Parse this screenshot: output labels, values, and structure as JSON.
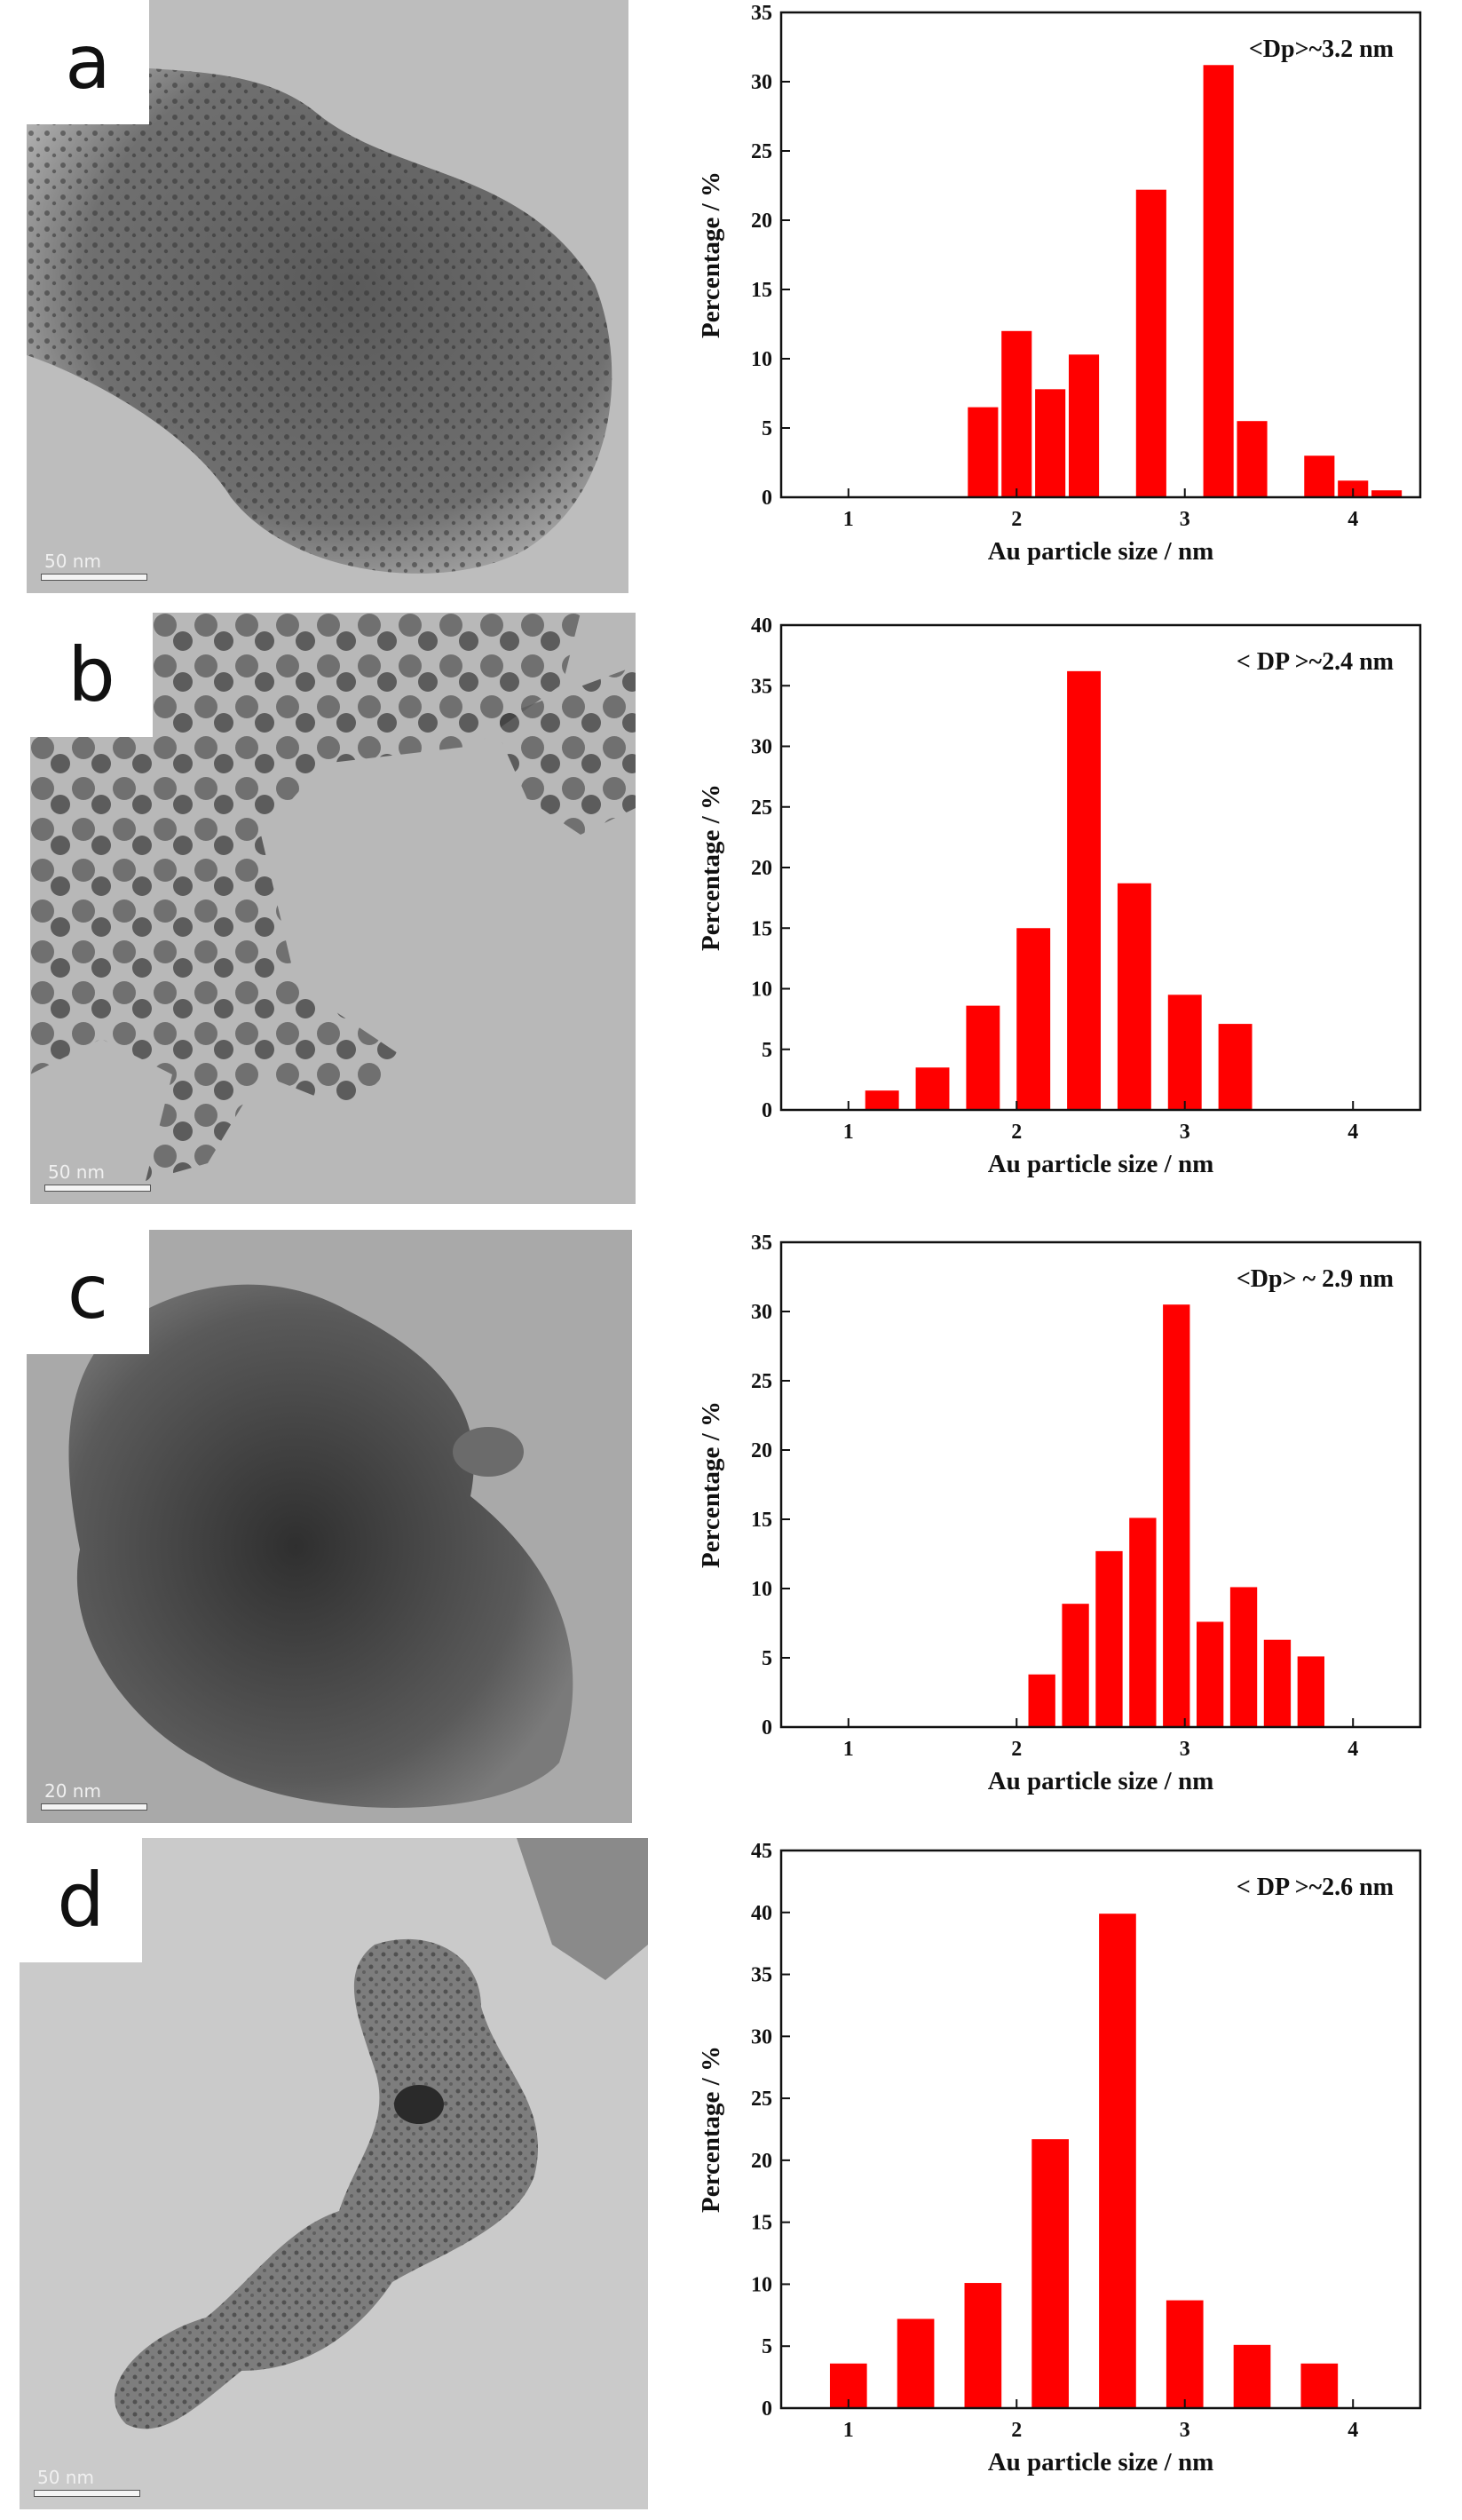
{
  "panels": [
    {
      "letter": "a",
      "scale_label": "50 nm",
      "chart_data": {
        "type": "bar",
        "annotation": "<Dp>~3.2 nm",
        "xlabel": "Au particle size / nm",
        "ylabel": "Percentage / %",
        "xlim": [
          0.6,
          4.4
        ],
        "ylim": [
          0,
          35
        ],
        "xticks": [
          1,
          2,
          3,
          4
        ],
        "yticks": [
          0,
          5,
          10,
          15,
          20,
          25,
          30,
          35
        ],
        "bar_width": 0.18,
        "x": [
          1.8,
          2.0,
          2.2,
          2.4,
          2.8,
          3.2,
          3.4,
          3.8,
          4.0,
          4.2
        ],
        "values": [
          6.5,
          12.0,
          7.8,
          10.3,
          22.2,
          31.2,
          5.5,
          3.0,
          1.2,
          0.5
        ],
        "color": "#ff0000"
      }
    },
    {
      "letter": "b",
      "scale_label": "50 nm",
      "chart_data": {
        "type": "bar",
        "annotation": "< DP >~2.4 nm",
        "xlabel": "Au particle size / nm",
        "ylabel": "Percentage / %",
        "xlim": [
          0.6,
          4.4
        ],
        "ylim": [
          0,
          40
        ],
        "xticks": [
          1,
          2,
          3,
          4
        ],
        "yticks": [
          0,
          5,
          10,
          15,
          20,
          25,
          30,
          35,
          40
        ],
        "bar_width": 0.2,
        "x": [
          1.2,
          1.5,
          1.8,
          2.1,
          2.4,
          2.7,
          3.0,
          3.3
        ],
        "values": [
          1.6,
          3.5,
          8.6,
          15.0,
          36.2,
          18.7,
          9.5,
          7.1
        ],
        "color": "#ff0000"
      }
    },
    {
      "letter": "c",
      "scale_label": "20 nm",
      "chart_data": {
        "type": "bar",
        "annotation": "<Dp> ~ 2.9 nm",
        "xlabel": "Au particle size / nm",
        "ylabel": "Percentage / %",
        "xlim": [
          0.6,
          4.4
        ],
        "ylim": [
          0,
          35
        ],
        "xticks": [
          1,
          2,
          3,
          4
        ],
        "yticks": [
          0,
          5,
          10,
          15,
          20,
          25,
          30,
          35
        ],
        "bar_width": 0.16,
        "x": [
          2.15,
          2.35,
          2.55,
          2.75,
          2.95,
          3.15,
          3.35,
          3.55,
          3.75
        ],
        "values": [
          3.8,
          8.9,
          12.7,
          15.1,
          30.5,
          7.6,
          10.1,
          6.3,
          5.1
        ],
        "color": "#ff0000"
      }
    },
    {
      "letter": "d",
      "scale_label": "50 nm",
      "chart_data": {
        "type": "bar",
        "annotation": "< DP >~2.6 nm",
        "xlabel": "Au particle size / nm",
        "ylabel": "Percentage / %",
        "xlim": [
          0.6,
          4.4
        ],
        "ylim": [
          0,
          45
        ],
        "xticks": [
          1,
          2,
          3,
          4
        ],
        "yticks": [
          0,
          5,
          10,
          15,
          20,
          25,
          30,
          35,
          40,
          45
        ],
        "bar_width": 0.22,
        "x": [
          1.0,
          1.4,
          1.8,
          2.2,
          2.6,
          3.0,
          3.4,
          3.8
        ],
        "values": [
          3.6,
          7.2,
          10.1,
          21.7,
          39.9,
          8.7,
          5.1,
          3.6
        ],
        "color": "#ff0000"
      }
    }
  ]
}
